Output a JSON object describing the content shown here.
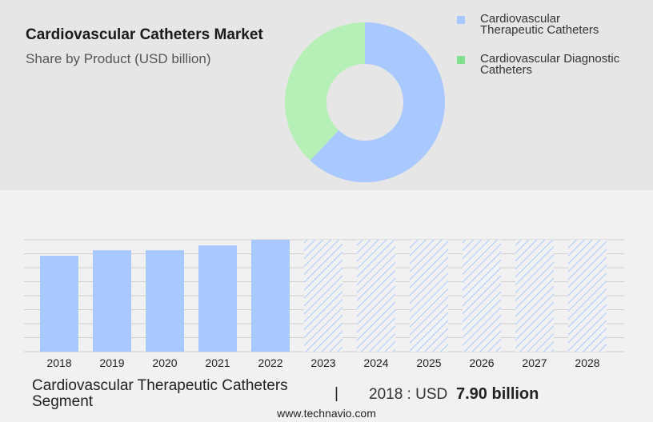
{
  "chart_data": [
    {
      "type": "pie",
      "title": "Cardiovascular Catheters Market",
      "subtitle": "Share by Product (USD billion)",
      "categories": [
        "Cardiovascular Therapeutic Catheters",
        "Cardiovascular Diagnostic Catheters"
      ],
      "values": [
        62,
        38
      ],
      "colors": [
        "#a8c8ff",
        "#b6f0b6"
      ],
      "legend_colors": [
        "#a8c8ff",
        "#7fe08f"
      ]
    },
    {
      "type": "bar",
      "categories": [
        "2018",
        "2019",
        "2020",
        "2021",
        "2022",
        "2023",
        "2024",
        "2025",
        "2026",
        "2027",
        "2028"
      ],
      "values": [
        7.9,
        8.36,
        8.36,
        8.76,
        9.22,
        null,
        null,
        null,
        null,
        null,
        null
      ],
      "value_labels": [
        "7.90 billion",
        null,
        null,
        null,
        null,
        null,
        null,
        null,
        null,
        null,
        null
      ],
      "color": "#a8c8ff",
      "grid": true
    }
  ],
  "footer": {
    "segment": "Cardiovascular Therapeutic Catheters Segment",
    "year_label": "2018 : USD"
  },
  "source": "www.technavio.com"
}
